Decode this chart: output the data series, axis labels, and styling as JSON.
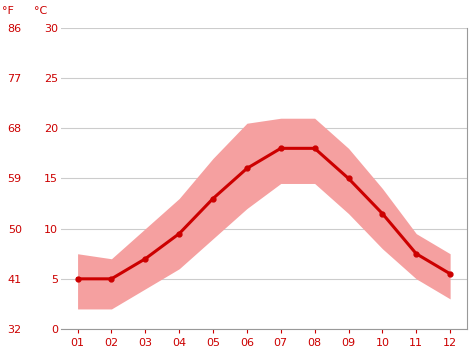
{
  "months": [
    1,
    2,
    3,
    4,
    5,
    6,
    7,
    8,
    9,
    10,
    11,
    12
  ],
  "month_labels": [
    "01",
    "02",
    "03",
    "04",
    "05",
    "06",
    "07",
    "08",
    "09",
    "10",
    "11",
    "12"
  ],
  "avg_temp_c": [
    5.0,
    5.0,
    7.0,
    9.5,
    13.0,
    16.0,
    18.0,
    18.0,
    15.0,
    11.5,
    7.5,
    5.5
  ],
  "max_temp_c": [
    7.5,
    7.0,
    10.0,
    13.0,
    17.0,
    20.5,
    21.0,
    21.0,
    18.0,
    14.0,
    9.5,
    7.5
  ],
  "min_temp_c": [
    2.0,
    2.0,
    4.0,
    6.0,
    9.0,
    12.0,
    14.5,
    14.5,
    11.5,
    8.0,
    5.0,
    3.0
  ],
  "line_color": "#cc0000",
  "band_color": "#f5a0a0",
  "grid_color": "#cccccc",
  "tick_color": "#cc0000",
  "label_f": "°F",
  "label_c": "°C",
  "yticks_c": [
    0,
    5,
    10,
    15,
    20,
    25,
    30
  ],
  "yticks_f": [
    32,
    41,
    50,
    59,
    68,
    77,
    86
  ],
  "ylim_c": [
    0,
    30
  ],
  "xlim": [
    0.5,
    12.5
  ],
  "bg_color": "#ffffff",
  "axis_line_color": "#aaaaaa",
  "spine_color": "#999999"
}
